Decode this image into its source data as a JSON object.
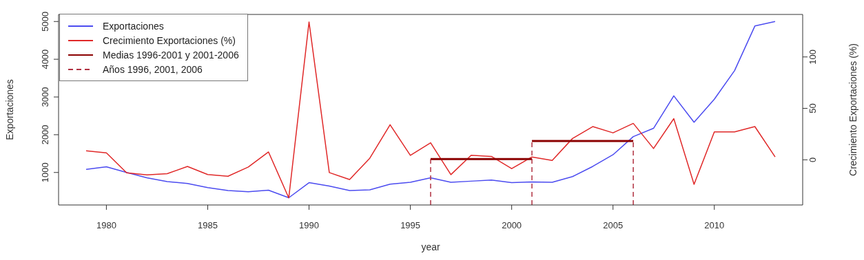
{
  "chart_data": {
    "type": "line",
    "xlabel": "year",
    "ylabel": "Exportaciones",
    "y2label": "Crecimiento Exportaciones (%)",
    "x": [
      1979,
      1980,
      1981,
      1982,
      1983,
      1984,
      1985,
      1986,
      1987,
      1988,
      1989,
      1990,
      1991,
      1992,
      1993,
      1994,
      1995,
      1996,
      1997,
      1998,
      1999,
      2000,
      2001,
      2002,
      2003,
      2004,
      2005,
      2006,
      2007,
      2008,
      2009,
      2010,
      2011,
      2012,
      2013
    ],
    "series": [
      {
        "name": "Exportaciones",
        "color": "#4b4bf0",
        "values": [
          1080,
          1150,
          1000,
          860,
          760,
          710,
          600,
          520,
          490,
          530,
          330,
          730,
          640,
          520,
          540,
          690,
          740,
          860,
          740,
          770,
          800,
          730,
          750,
          740,
          890,
          1160,
          1470,
          1950,
          2170,
          3030,
          2330,
          2940,
          3700,
          4880,
          5000
        ]
      },
      {
        "name": "Crecimiento Exportaciones (%)",
        "color": "#e02828",
        "axis": "y2",
        "values": [
          8.7,
          6.8,
          -12.7,
          -14.6,
          -13.5,
          -6.5,
          -14.3,
          -16.0,
          -7.0,
          7.6,
          -37,
          134,
          -12.4,
          -19.2,
          1.6,
          34.1,
          4.3,
          16.5,
          -14.4,
          4.4,
          3.3,
          -8.6,
          2.8,
          -0.6,
          20.7,
          32.3,
          26.2,
          35.4,
          11.0,
          40.0,
          -23.8,
          27.1,
          27.1,
          32.3,
          2.8
        ]
      },
      {
        "name": "Medias 1996-2001 y 2001-2006",
        "color": "#8b0000",
        "axis": "y2",
        "x": [
          1996,
          2001
        ],
        "values": [
          0.8,
          0.8
        ]
      },
      {
        "color": "#8b0000",
        "axis": "y2",
        "x": [
          2001,
          2006
        ],
        "values": [
          18.2,
          18.2
        ]
      },
      {
        "name": "Años 1996, 2001, 2006",
        "color": "#b03040",
        "axis": "y2",
        "line_style": "dashed",
        "x": [
          1996,
          1996
        ],
        "values": [
          -43.9,
          0.8
        ]
      },
      {
        "color": "#b03040",
        "axis": "y2",
        "line_style": "dashed",
        "x": [
          2001,
          2001
        ],
        "values": [
          -43.9,
          18.2
        ]
      },
      {
        "color": "#b03040",
        "axis": "y2",
        "line_style": "dashed",
        "x": [
          2006,
          2006
        ],
        "values": [
          -43.9,
          18.2
        ]
      }
    ],
    "xlim": [
      1977.64,
      2014.36
    ],
    "xticks": [
      1980,
      1985,
      1990,
      1995,
      2000,
      2005,
      2010
    ],
    "ylim": [
      139,
      5187
    ],
    "yticks": [
      1000,
      2000,
      3000,
      4000,
      5000
    ],
    "y2lim": [
      -43.9,
      141.3
    ],
    "y2ticks": [
      0,
      50,
      100
    ],
    "grid": false,
    "legend": "top left",
    "marker": "none"
  }
}
